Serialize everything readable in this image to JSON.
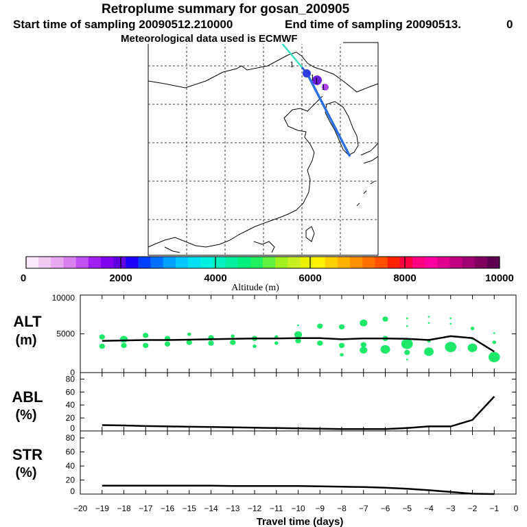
{
  "header": {
    "title": "Retroplume summary for gosan_200905",
    "start_label": "Start time of sampling 20090512.210000",
    "end_label": "End time of sampling 20090513.",
    "end_value": "0",
    "met_label": "Meteorological data used is ECMWF"
  },
  "colors": {
    "plume_green": "#1ee86a",
    "line": "#000000",
    "track_blue": "#2d6fe0",
    "track_cyan": "#30e0c0"
  },
  "map": {
    "track_markers": [
      "1",
      "1",
      "1",
      "1"
    ]
  },
  "colorbar": {
    "label": "Altitude (m)",
    "tick_labels": [
      "0",
      "2000",
      "4000",
      "6000",
      "8000",
      "10000"
    ],
    "colors": [
      "#f8e8f8",
      "#f0c8f0",
      "#e8a8f0",
      "#d880f0",
      "#c050f0",
      "#a020f0",
      "#8000f0",
      "#6000e0",
      "#2000ff",
      "#0040ff",
      "#0070ff",
      "#00a0ff",
      "#00c8ff",
      "#00e0f0",
      "#00f0e0",
      "#00f0c0",
      "#00f0a0",
      "#00f080",
      "#20f060",
      "#60f040",
      "#a0f020",
      "#c8f020",
      "#e8f000",
      "#fff000",
      "#ffd000",
      "#ffb000",
      "#ff9000",
      "#ff7000",
      "#ff5000",
      "#ff2000",
      "#ff0040",
      "#ff0080",
      "#ff00a0",
      "#e00090",
      "#c00080",
      "#a00070",
      "#800060",
      "#600050"
    ]
  },
  "x_axis": {
    "label": "Travel time (days)",
    "ticks": [
      "−20",
      "−19",
      "−18",
      "−17",
      "−16",
      "−15",
      "−14",
      "−13",
      "−12",
      "−11",
      "−10",
      "−9",
      "−8",
      "−7",
      "−6",
      "−5",
      "−4",
      "−3",
      "−2",
      "−1",
      "0"
    ]
  },
  "chart_data": [
    {
      "type": "scatter",
      "id": "ALT",
      "panel_label_top": "ALT",
      "panel_label_bottom": "(m)",
      "ylim": [
        0,
        10000
      ],
      "y_ticks": [
        "0",
        "5000",
        "10000"
      ],
      "x": [
        -19,
        -18,
        -17,
        -16,
        -15,
        -14,
        -13,
        -12,
        -11,
        -10,
        -9,
        -8,
        -7,
        -6,
        -5,
        -4,
        -3,
        -2,
        -1
      ],
      "series": [
        {
          "name": "mean altitude",
          "values": [
            4100,
            4150,
            4200,
            4200,
            4250,
            4300,
            4350,
            4400,
            4400,
            4450,
            4450,
            4300,
            4400,
            4400,
            4350,
            4200,
            4700,
            4450,
            2700
          ]
        }
      ],
      "plume_points": [
        {
          "x": -19,
          "alt": 4600,
          "size": 3
        },
        {
          "x": -19,
          "alt": 3400,
          "size": 3
        },
        {
          "x": -18,
          "alt": 4300,
          "size": 4
        },
        {
          "x": -18,
          "alt": 3500,
          "size": 3
        },
        {
          "x": -17,
          "alt": 4800,
          "size": 3
        },
        {
          "x": -17,
          "alt": 3500,
          "size": 3
        },
        {
          "x": -16,
          "alt": 4400,
          "size": 3
        },
        {
          "x": -16,
          "alt": 3700,
          "size": 3
        },
        {
          "x": -15,
          "alt": 4950,
          "size": 2
        },
        {
          "x": -15,
          "alt": 3900,
          "size": 3
        },
        {
          "x": -14,
          "alt": 4500,
          "size": 3
        },
        {
          "x": -14,
          "alt": 3800,
          "size": 3
        },
        {
          "x": -13,
          "alt": 4700,
          "size": 2
        },
        {
          "x": -13,
          "alt": 3900,
          "size": 3
        },
        {
          "x": -12,
          "alt": 4400,
          "size": 3
        },
        {
          "x": -12,
          "alt": 3400,
          "size": 2
        },
        {
          "x": -11,
          "alt": 4600,
          "size": 2
        },
        {
          "x": -11,
          "alt": 3800,
          "size": 2
        },
        {
          "x": -10,
          "alt": 4900,
          "size": 4
        },
        {
          "x": -10,
          "alt": 4100,
          "size": 3
        },
        {
          "x": -10,
          "alt": 6100,
          "size": 1
        },
        {
          "x": -9,
          "alt": 6000,
          "size": 3
        },
        {
          "x": -9,
          "alt": 3800,
          "size": 3
        },
        {
          "x": -8,
          "alt": 5900,
          "size": 3
        },
        {
          "x": -8,
          "alt": 3500,
          "size": 3
        },
        {
          "x": -8,
          "alt": 2300,
          "size": 2
        },
        {
          "x": -7,
          "alt": 6400,
          "size": 4
        },
        {
          "x": -7,
          "alt": 3600,
          "size": 3
        },
        {
          "x": -7,
          "alt": 2900,
          "size": 4
        },
        {
          "x": -6,
          "alt": 6900,
          "size": 3
        },
        {
          "x": -6,
          "alt": 4400,
          "size": 3
        },
        {
          "x": -6,
          "alt": 3000,
          "size": 5
        },
        {
          "x": -5,
          "alt": 7000,
          "size": 1
        },
        {
          "x": -5,
          "alt": 6000,
          "size": 1
        },
        {
          "x": -5,
          "alt": 3700,
          "size": 6
        },
        {
          "x": -5,
          "alt": 2600,
          "size": 3
        },
        {
          "x": -5,
          "alt": 1700,
          "size": 1
        },
        {
          "x": -4,
          "alt": 7200,
          "size": 1
        },
        {
          "x": -4,
          "alt": 6400,
          "size": 1
        },
        {
          "x": -4,
          "alt": 4100,
          "size": 2
        },
        {
          "x": -4,
          "alt": 2700,
          "size": 5
        },
        {
          "x": -3,
          "alt": 7000,
          "size": 1
        },
        {
          "x": -3,
          "alt": 6300,
          "size": 1
        },
        {
          "x": -3,
          "alt": 3300,
          "size": 6
        },
        {
          "x": -2,
          "alt": 5700,
          "size": 2
        },
        {
          "x": -2,
          "alt": 4300,
          "size": 1
        },
        {
          "x": -2,
          "alt": 3200,
          "size": 5
        },
        {
          "x": -1,
          "alt": 5100,
          "size": 1
        },
        {
          "x": -1,
          "alt": 3900,
          "size": 2
        },
        {
          "x": -1,
          "alt": 2000,
          "size": 6
        }
      ]
    },
    {
      "type": "line",
      "id": "ABL",
      "panel_label_top": "ABL",
      "panel_label_bottom": "(%)",
      "ylim": [
        0,
        90
      ],
      "y_ticks": [
        "0",
        "20",
        "40",
        "60",
        "80"
      ],
      "x": [
        -19,
        -18,
        -17,
        -16,
        -15,
        -14,
        -13,
        -12,
        -11,
        -10,
        -9,
        -8,
        -7,
        -6,
        -5,
        -4,
        -3,
        -2,
        -1
      ],
      "series": [
        {
          "name": "ABL fraction",
          "values": [
            9,
            8.5,
            7.5,
            7,
            6.5,
            6,
            5.5,
            5,
            4.5,
            4,
            3.5,
            3,
            3,
            3,
            4.5,
            7,
            7,
            17,
            53
          ]
        }
      ]
    },
    {
      "type": "line",
      "id": "STR",
      "panel_label_top": "STR",
      "panel_label_bottom": "(%)",
      "ylim": [
        0,
        90
      ],
      "y_ticks": [
        "0",
        "20",
        "40",
        "60",
        "80"
      ],
      "x": [
        -19,
        -18,
        -17,
        -16,
        -15,
        -14,
        -13,
        -12,
        -11,
        -10,
        -9,
        -8,
        -7,
        -6,
        -5,
        -4,
        -3,
        -2,
        -1
      ],
      "series": [
        {
          "name": "STR fraction",
          "values": [
            12,
            12,
            12,
            12,
            12,
            12,
            11.5,
            11.5,
            11.5,
            11.5,
            11,
            10.5,
            10,
            9,
            7.5,
            5.5,
            3,
            0.5,
            0
          ]
        }
      ]
    }
  ]
}
